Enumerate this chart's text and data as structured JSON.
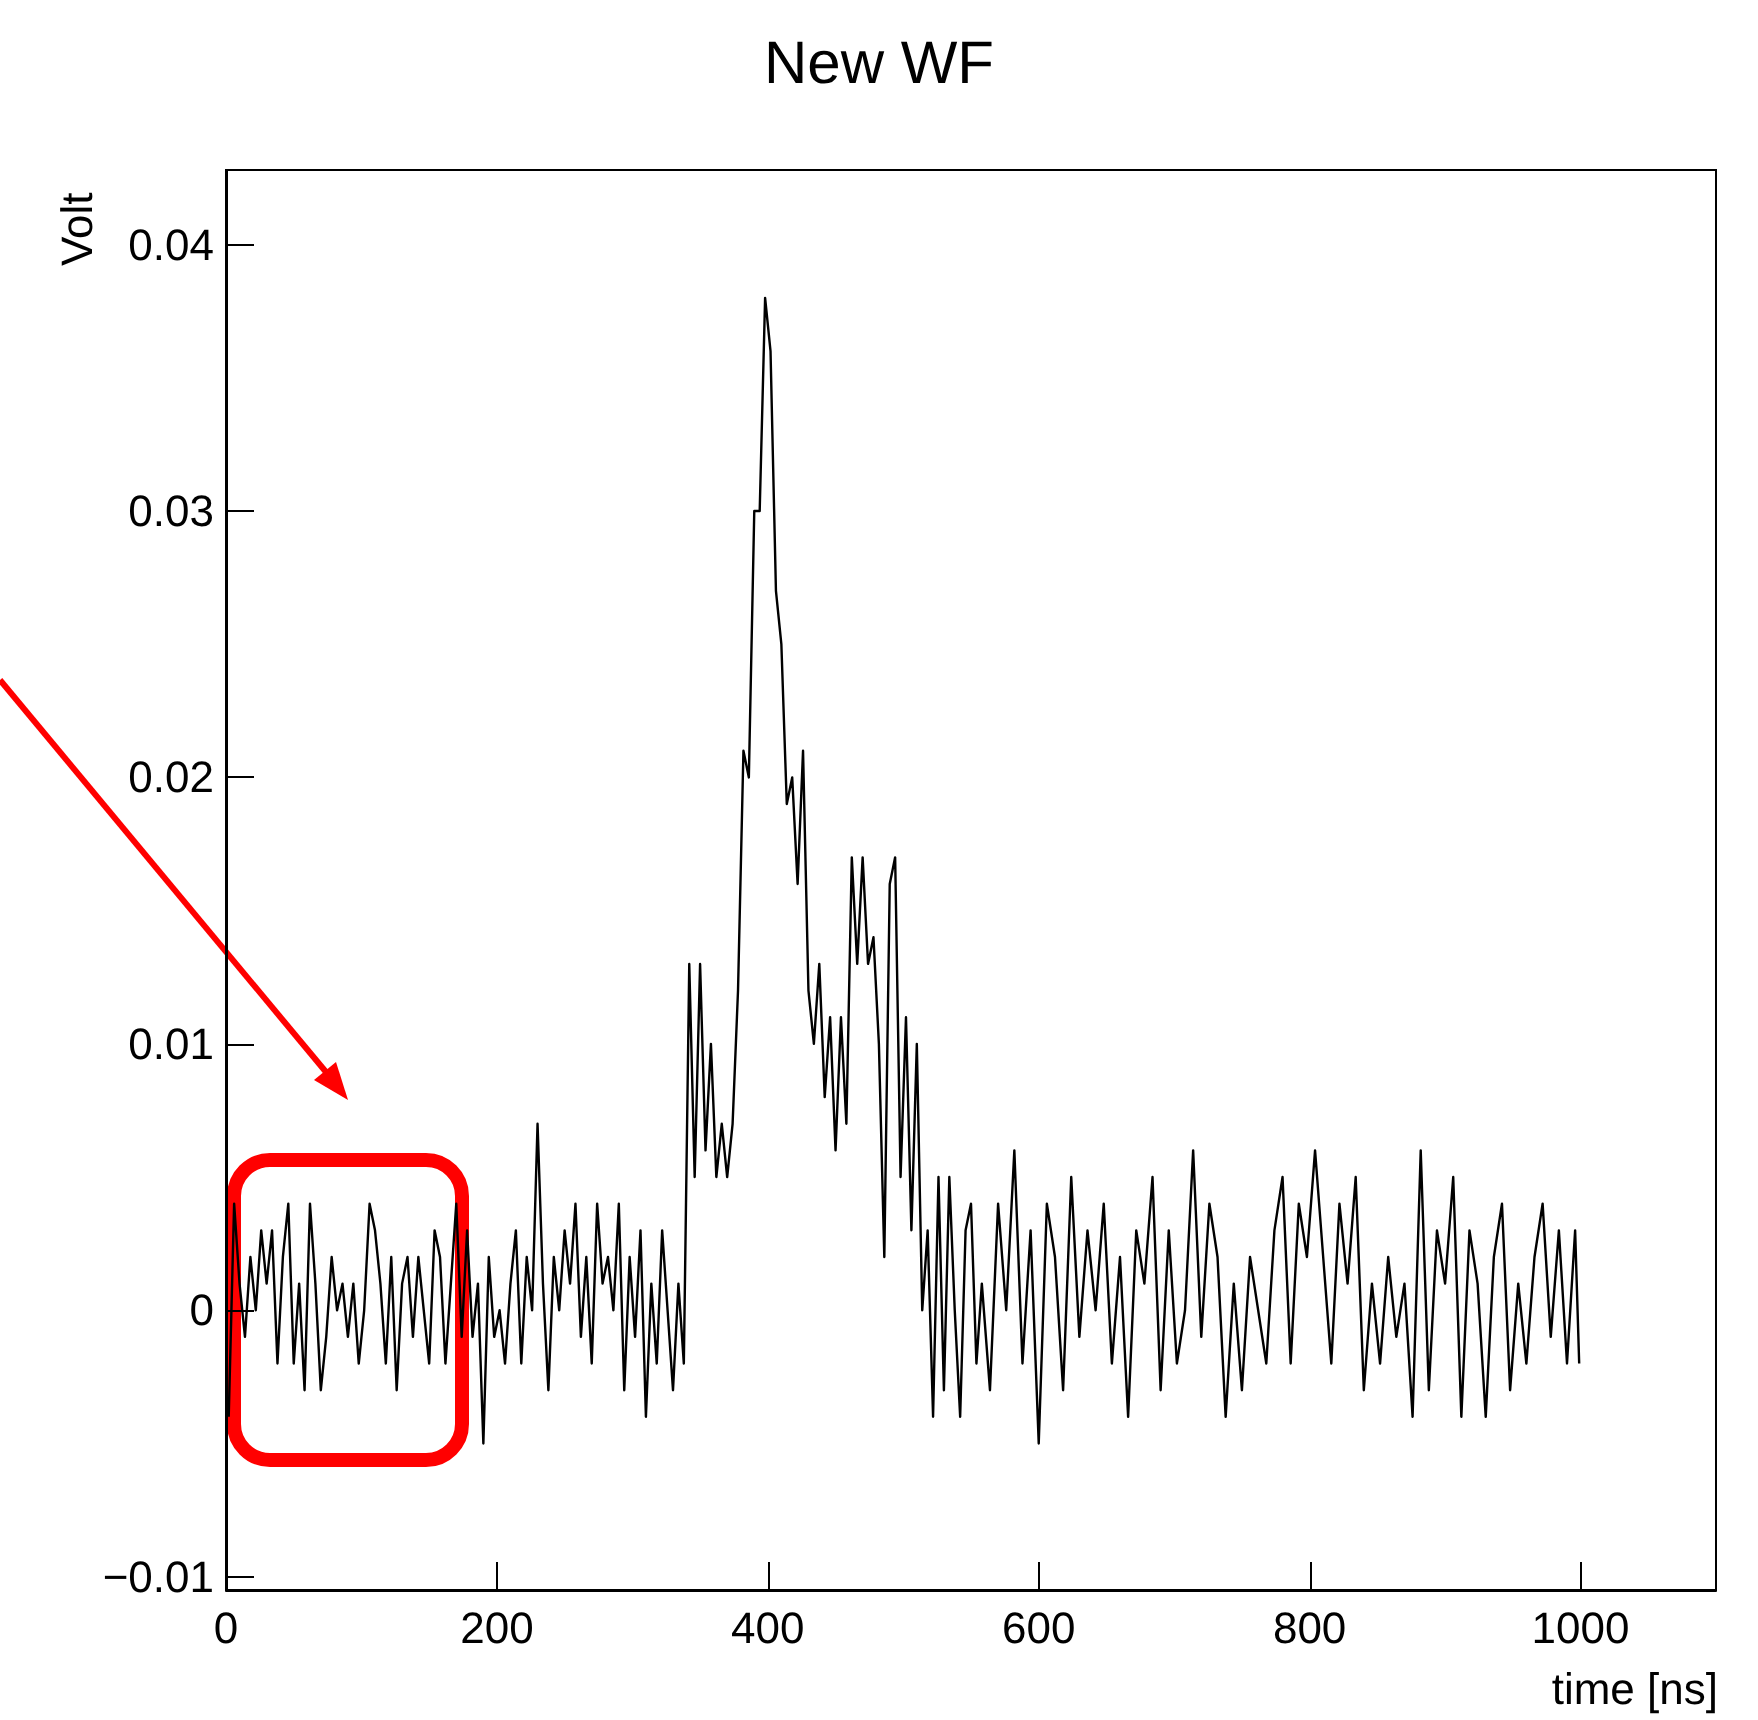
{
  "chart_data": {
    "type": "line",
    "title": "New WF",
    "xlabel": "time [ns]",
    "ylabel": "Volt",
    "xlim": [
      0,
      1100
    ],
    "xticks": [
      0,
      200,
      400,
      600,
      800,
      1000
    ],
    "ylim": [
      -0.0105,
      0.0428
    ],
    "yticks": [
      {
        "value": -0.01,
        "label": "−0.01"
      },
      0,
      0.01,
      0.02,
      0.03,
      0.04
    ],
    "grid": false,
    "marker": "none",
    "line_style": "solid",
    "series": [
      {
        "color": "#000000",
        "x": [
          2,
          6,
          10,
          14,
          18,
          22,
          26,
          30,
          34,
          38,
          42,
          46,
          50,
          54,
          58,
          62,
          66,
          70,
          74,
          78,
          82,
          86,
          90,
          94,
          98,
          102,
          106,
          110,
          114,
          118,
          122,
          126,
          130,
          134,
          138,
          142,
          146,
          150,
          154,
          158,
          162,
          166,
          170,
          174,
          178,
          182,
          186,
          190,
          194,
          198,
          202,
          206,
          210,
          214,
          218,
          222,
          226,
          230,
          234,
          238,
          242,
          246,
          250,
          254,
          258,
          262,
          266,
          270,
          274,
          278,
          282,
          286,
          290,
          294,
          298,
          302,
          306,
          310,
          314,
          318,
          322,
          326,
          330,
          334,
          338,
          342,
          346,
          350,
          354,
          358,
          362,
          366,
          370,
          374,
          378,
          382,
          386,
          390,
          394,
          398,
          402,
          406,
          410,
          414,
          418,
          422,
          426,
          430,
          434,
          438,
          442,
          446,
          450,
          454,
          458,
          462,
          466,
          470,
          474,
          478,
          482,
          486,
          490,
          494,
          498,
          502,
          506,
          510,
          514,
          518,
          522,
          526,
          530,
          534,
          538,
          542,
          546,
          550,
          554,
          558,
          564,
          570,
          576,
          582,
          588,
          594,
          600,
          606,
          612,
          618,
          624,
          630,
          636,
          642,
          648,
          654,
          660,
          666,
          672,
          678,
          684,
          690,
          696,
          702,
          708,
          714,
          720,
          726,
          732,
          738,
          744,
          750,
          756,
          762,
          768,
          774,
          780,
          786,
          792,
          798,
          804,
          810,
          816,
          822,
          828,
          834,
          840,
          846,
          852,
          858,
          864,
          870,
          876,
          882,
          888,
          894,
          900,
          906,
          912,
          918,
          924,
          930,
          936,
          942,
          948,
          954,
          960,
          966,
          972,
          978,
          984,
          990,
          996,
          999
        ],
        "values": [
          -0.004,
          0.004,
          0.001,
          -0.001,
          0.002,
          0.0,
          0.003,
          0.001,
          0.003,
          -0.002,
          0.002,
          0.004,
          -0.002,
          0.001,
          -0.003,
          0.004,
          0.001,
          -0.003,
          -0.001,
          0.002,
          0.0,
          0.001,
          -0.001,
          0.001,
          -0.002,
          0.0,
          0.004,
          0.003,
          0.001,
          -0.002,
          0.002,
          -0.003,
          0.001,
          0.002,
          -0.001,
          0.002,
          0.0,
          -0.002,
          0.003,
          0.002,
          -0.002,
          0.001,
          0.004,
          -0.001,
          0.003,
          -0.001,
          0.001,
          -0.005,
          0.002,
          -0.001,
          0.0,
          -0.002,
          0.001,
          0.003,
          -0.002,
          0.002,
          0.0,
          0.007,
          0.001,
          -0.003,
          0.002,
          0.0,
          0.003,
          0.001,
          0.004,
          -0.001,
          0.002,
          -0.002,
          0.004,
          0.001,
          0.002,
          0.0,
          0.004,
          -0.003,
          0.002,
          -0.001,
          0.003,
          -0.004,
          0.001,
          -0.002,
          0.003,
          0.0,
          -0.003,
          0.001,
          -0.002,
          0.013,
          0.005,
          0.013,
          0.006,
          0.01,
          0.005,
          0.007,
          0.005,
          0.007,
          0.012,
          0.021,
          0.02,
          0.03,
          0.03,
          0.038,
          0.036,
          0.027,
          0.025,
          0.019,
          0.02,
          0.016,
          0.021,
          0.012,
          0.01,
          0.013,
          0.008,
          0.011,
          0.006,
          0.011,
          0.007,
          0.017,
          0.013,
          0.017,
          0.013,
          0.014,
          0.01,
          0.002,
          0.016,
          0.017,
          0.005,
          0.011,
          0.003,
          0.01,
          0.0,
          0.003,
          -0.004,
          0.005,
          -0.003,
          0.005,
          0.0,
          -0.004,
          0.003,
          0.004,
          -0.002,
          0.001,
          -0.003,
          0.004,
          0.0,
          0.006,
          -0.002,
          0.003,
          -0.005,
          0.004,
          0.002,
          -0.003,
          0.005,
          -0.001,
          0.003,
          0.0,
          0.004,
          -0.002,
          0.002,
          -0.004,
          0.003,
          0.001,
          0.005,
          -0.003,
          0.003,
          -0.002,
          0.0,
          0.006,
          -0.001,
          0.004,
          0.002,
          -0.004,
          0.001,
          -0.003,
          0.002,
          0.0,
          -0.002,
          0.003,
          0.005,
          -0.002,
          0.004,
          0.002,
          0.006,
          0.002,
          -0.002,
          0.004,
          0.001,
          0.005,
          -0.003,
          0.001,
          -0.002,
          0.002,
          -0.001,
          0.001,
          -0.004,
          0.006,
          -0.003,
          0.003,
          0.001,
          0.005,
          -0.004,
          0.003,
          0.001,
          -0.004,
          0.002,
          0.004,
          -0.003,
          0.001,
          -0.002,
          0.002,
          0.004,
          -0.001,
          0.003,
          -0.002,
          0.003,
          -0.002
        ]
      }
    ]
  }
}
